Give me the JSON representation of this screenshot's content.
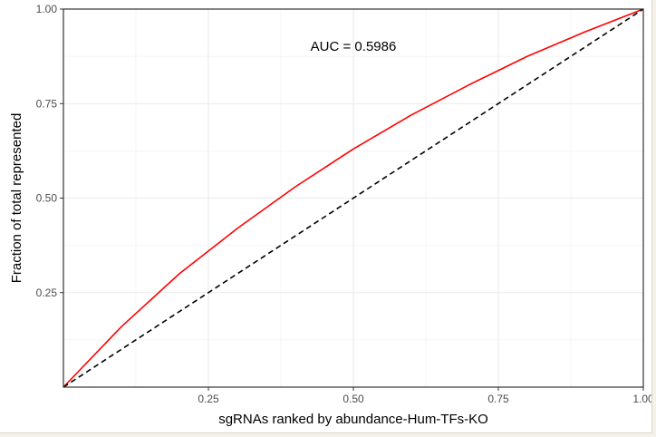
{
  "chart_data": {
    "type": "line",
    "title": "",
    "xlabel": "sgRNAs ranked by abundance-Hum-TFs-KO",
    "ylabel": "Fraction of total represented",
    "xlim": [
      0,
      1
    ],
    "ylim": [
      0,
      1
    ],
    "x_ticks": [
      "0.25",
      "0.50",
      "0.75",
      "1.00"
    ],
    "y_ticks": [
      "0.25",
      "0.50",
      "0.75",
      "1.00"
    ],
    "grid": true,
    "annotation": "AUC = 0.5986",
    "colors": {
      "curve": "#ff0000",
      "reference": "#000000",
      "grid": "#ebebeb"
    },
    "series": [
      {
        "style": "solid",
        "x": [
          0,
          0.1,
          0.2,
          0.3,
          0.4,
          0.5,
          0.6,
          0.7,
          0.8,
          0.9,
          1.0
        ],
        "y": [
          0,
          0.16,
          0.3,
          0.42,
          0.53,
          0.63,
          0.72,
          0.8,
          0.875,
          0.94,
          1.0
        ]
      },
      {
        "style": "dashed",
        "x": [
          0,
          1
        ],
        "y": [
          0,
          1
        ]
      }
    ]
  }
}
